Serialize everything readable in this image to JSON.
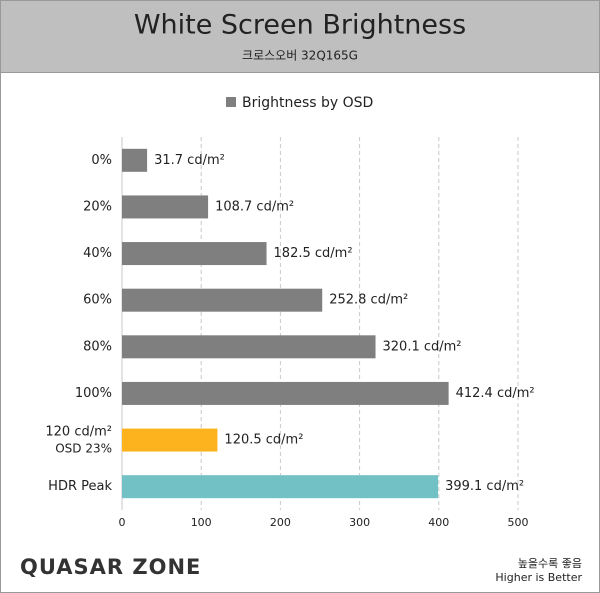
{
  "chart_data": {
    "type": "bar",
    "orientation": "horizontal",
    "title": "White Screen Brightness",
    "subtitle": "크로스오버 32Q165G",
    "legend": "Brightness by OSD",
    "legend_color": "#7f7f7f",
    "categories": [
      "0%",
      "20%",
      "40%",
      "60%",
      "80%",
      "100%",
      "120 cd/m²",
      "HDR Peak"
    ],
    "category_notes": [
      null,
      null,
      null,
      null,
      null,
      null,
      "OSD 23%",
      null
    ],
    "values": [
      31.7,
      108.7,
      182.5,
      252.8,
      320.1,
      412.4,
      120.5,
      399.1
    ],
    "value_labels": [
      "31.7 cd/m²",
      "108.7 cd/m²",
      "182.5 cd/m²",
      "252.8 cd/m²",
      "320.1 cd/m²",
      "412.4 cd/m²",
      "120.5 cd/m²",
      "399.1 cd/m²"
    ],
    "colors": [
      "#7f7f7f",
      "#7f7f7f",
      "#7f7f7f",
      "#7f7f7f",
      "#7f7f7f",
      "#7f7f7f",
      "#fdb31e",
      "#72c1c5"
    ],
    "xlim": [
      0,
      500
    ],
    "xticks": [
      0,
      100,
      200,
      300,
      400,
      500
    ],
    "grid": true
  },
  "footer": {
    "logo": "QUASAR ZONE",
    "note_ko": "높을수록 좋음",
    "note_en": "Higher is Better"
  }
}
